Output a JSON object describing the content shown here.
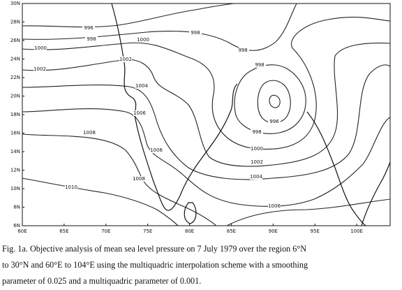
{
  "figure": {
    "x_ticks": [
      {
        "value": 60,
        "label": "60E"
      },
      {
        "value": 65,
        "label": "65E"
      },
      {
        "value": 70,
        "label": "70E"
      },
      {
        "value": 75,
        "label": "75E"
      },
      {
        "value": 80,
        "label": "80E"
      },
      {
        "value": 85,
        "label": "85E"
      },
      {
        "value": 90,
        "label": "90E"
      },
      {
        "value": 95,
        "label": "95E"
      },
      {
        "value": 100,
        "label": "100E"
      }
    ],
    "y_ticks": [
      {
        "value": 6,
        "label": "6N"
      },
      {
        "value": 8,
        "label": "8N"
      },
      {
        "value": 10,
        "label": "10N"
      },
      {
        "value": 12,
        "label": "12N"
      },
      {
        "value": 14,
        "label": "14N"
      },
      {
        "value": 16,
        "label": "16N"
      },
      {
        "value": 18,
        "label": "18N"
      },
      {
        "value": 20,
        "label": "20N"
      },
      {
        "value": 22,
        "label": "22N"
      },
      {
        "value": 24,
        "label": "24N"
      },
      {
        "value": 26,
        "label": "26N"
      },
      {
        "value": 28,
        "label": "28N"
      },
      {
        "value": 30,
        "label": "30N"
      }
    ],
    "contour_labels": [
      996,
      998,
      998,
      1000,
      998,
      1000,
      1002,
      1002,
      998,
      1004,
      1006,
      996,
      998,
      1008,
      1006,
      1000,
      1002,
      1008,
      1004,
      1010,
      1006
    ],
    "caption": [
      "Fig. 1a. Objective analysis of mean sea level pressure on 7 July 1979 over the region 6°N",
      "to 30°N and 60°E to 104°E using the multiquadric interpolation scheme with a smoothing",
      "parameter of 0.025  and a multiquadric parameter of 0.001."
    ]
  }
}
